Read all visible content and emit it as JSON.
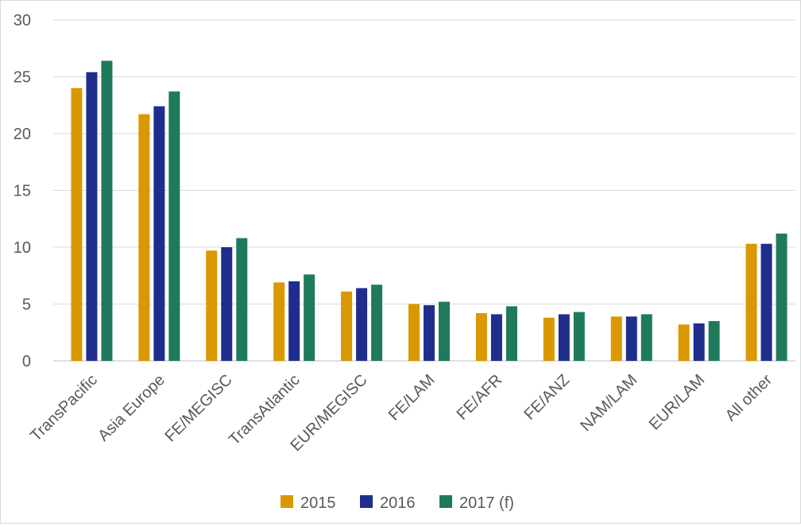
{
  "chart_data": {
    "type": "bar",
    "title": "",
    "xlabel": "",
    "ylabel": "",
    "ylim": [
      0,
      30
    ],
    "yticks": [
      0,
      5,
      10,
      15,
      20,
      25,
      30
    ],
    "grid": true,
    "legend_position": "bottom",
    "categories": [
      "TransPacific",
      "Asia Europe",
      "FE/MEGISC",
      "TransAtlantic",
      "EUR/MEGISC",
      "FE/LAM",
      "FE/AFR",
      "FE/ANZ",
      "NAM/LAM",
      "EUR/LAM",
      "All other"
    ],
    "series": [
      {
        "name": "2015",
        "color": "#D99800",
        "values": [
          24.0,
          21.7,
          9.7,
          6.9,
          6.1,
          5.0,
          4.2,
          3.8,
          3.9,
          3.2,
          10.3
        ]
      },
      {
        "name": "2016",
        "color": "#1F2E8C",
        "values": [
          25.4,
          22.4,
          10.0,
          7.0,
          6.4,
          4.9,
          4.1,
          4.1,
          3.9,
          3.3,
          10.3
        ]
      },
      {
        "name": "2017 (f)",
        "color": "#1E7A5A",
        "values": [
          26.4,
          23.7,
          10.8,
          7.6,
          6.7,
          5.2,
          4.8,
          4.3,
          4.1,
          3.5,
          11.2
        ]
      }
    ]
  }
}
